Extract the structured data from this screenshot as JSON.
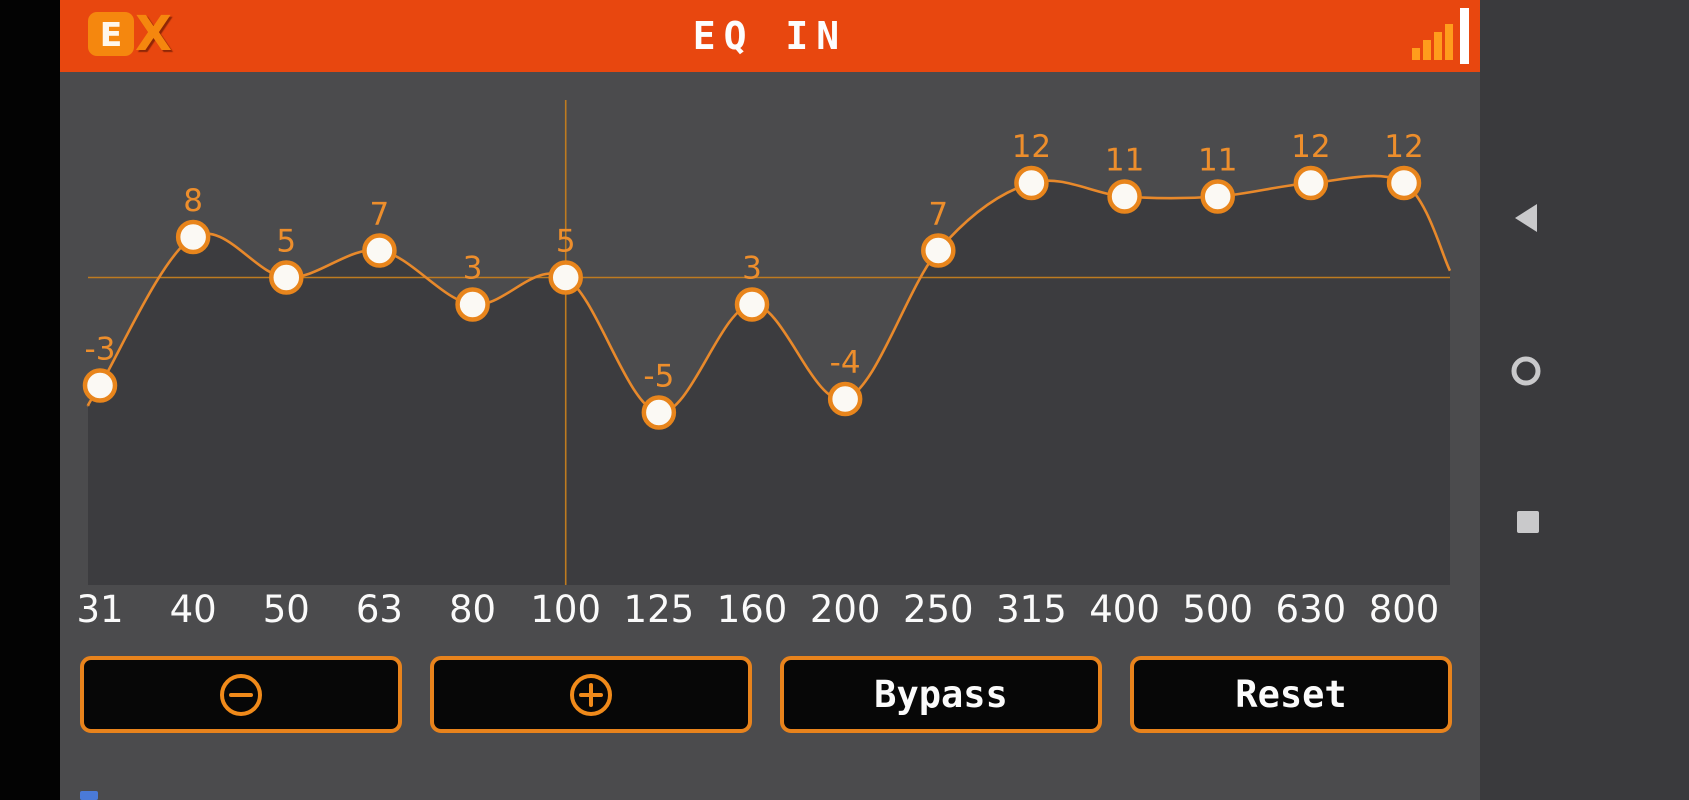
{
  "app": {
    "header": {
      "logo_e": "E",
      "logo_x": "X",
      "title": "EQ IN",
      "signal_icon": "signal-strength-bars"
    },
    "nav_bar": {
      "back_icon": "back-triangle",
      "home_icon": "home-circle",
      "recents_icon": "recents-square"
    }
  },
  "chart_data": {
    "type": "line",
    "title": "EQ IN",
    "categories": [
      "31",
      "40",
      "50",
      "63",
      "80",
      "100",
      "125",
      "160",
      "200",
      "250",
      "315",
      "400",
      "500",
      "630",
      "800"
    ],
    "values": [
      -3,
      8,
      5,
      7,
      3,
      5,
      -5,
      3,
      -4,
      7,
      12,
      11,
      11,
      12,
      12
    ],
    "ylim": [
      -18,
      18
    ],
    "grid": false,
    "legend": false,
    "selected_band": {
      "index": 5,
      "frequency": "100",
      "value": 5
    },
    "edge_left_db": -4.5,
    "edge_right_db": 5.5,
    "colors": {
      "accent": "#ED8A24",
      "curve": "#E8892B",
      "area_fill": "#3C3C3F",
      "point_fill": "#FBF9F4",
      "point_stroke": "#E8851C",
      "value_label": "#ED8E2C",
      "tick_label": "#FAFAFA",
      "crosshair": "#BE7B20",
      "header_bg": "#E8470F",
      "background": "#4B4B4D"
    }
  },
  "buttons": {
    "decrease": {
      "icon": "minus-circle"
    },
    "increase": {
      "icon": "plus-circle"
    },
    "bypass": {
      "label": "Bypass"
    },
    "reset": {
      "label": "Reset"
    }
  }
}
